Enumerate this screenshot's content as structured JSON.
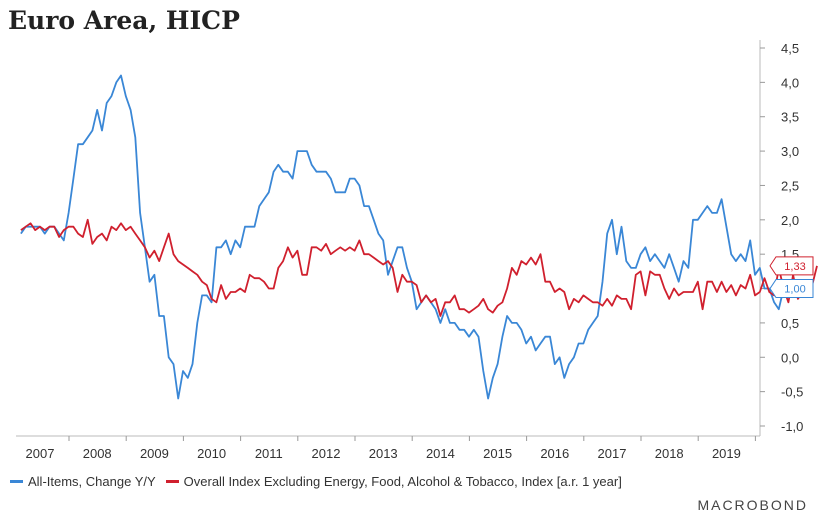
{
  "title": "Euro Area, HICP",
  "brand": "MACROBOND",
  "chart_data": {
    "type": "line",
    "title": "Euro Area, HICP",
    "xlabel": "",
    "ylabel": "",
    "ylim": [
      -1.0,
      4.5
    ],
    "yticks": [
      "4,5",
      "4,0",
      "3,5",
      "3,0",
      "2,5",
      "2,0",
      "1,5",
      "1,0",
      "0,5",
      "0,0",
      "-0,5",
      "-1,0"
    ],
    "ytick_values": [
      4.5,
      4.0,
      3.5,
      3.0,
      2.5,
      2.0,
      1.5,
      1.0,
      0.5,
      0.0,
      -0.5,
      -1.0
    ],
    "xticks": [
      "2007",
      "2008",
      "2009",
      "2010",
      "2011",
      "2012",
      "2013",
      "2014",
      "2015",
      "2016",
      "2017",
      "2018",
      "2019"
    ],
    "grid": false,
    "legend": "bottom",
    "series": [
      {
        "name": "All-Items, Change Y/Y",
        "color": "#3a87d6",
        "last_label": "1,00",
        "x_start": "2006-09",
        "values": [
          1.8,
          1.9,
          1.9,
          1.9,
          1.9,
          1.8,
          1.9,
          1.9,
          1.8,
          1.7,
          2.1,
          2.6,
          3.1,
          3.1,
          3.2,
          3.3,
          3.6,
          3.3,
          3.7,
          3.8,
          4.0,
          4.1,
          3.8,
          3.6,
          3.2,
          2.1,
          1.6,
          1.1,
          1.2,
          0.6,
          0.6,
          0.0,
          -0.1,
          -0.6,
          -0.2,
          -0.3,
          -0.1,
          0.5,
          0.9,
          0.9,
          0.8,
          1.6,
          1.6,
          1.7,
          1.5,
          1.7,
          1.6,
          1.9,
          1.9,
          1.9,
          2.2,
          2.3,
          2.4,
          2.7,
          2.8,
          2.7,
          2.7,
          2.6,
          3.0,
          3.0,
          3.0,
          2.8,
          2.7,
          2.7,
          2.7,
          2.6,
          2.4,
          2.4,
          2.4,
          2.6,
          2.6,
          2.5,
          2.2,
          2.2,
          2.0,
          1.8,
          1.7,
          1.2,
          1.4,
          1.6,
          1.6,
          1.3,
          1.1,
          0.7,
          0.8,
          0.9,
          0.8,
          0.7,
          0.5,
          0.7,
          0.5,
          0.5,
          0.4,
          0.4,
          0.3,
          0.4,
          0.3,
          -0.2,
          -0.6,
          -0.3,
          -0.1,
          0.3,
          0.6,
          0.5,
          0.5,
          0.4,
          0.2,
          0.3,
          0.1,
          0.2,
          0.3,
          0.3,
          -0.1,
          0.0,
          -0.3,
          -0.1,
          0.0,
          0.2,
          0.2,
          0.4,
          0.5,
          0.6,
          1.1,
          1.8,
          2.0,
          1.5,
          1.9,
          1.4,
          1.3,
          1.3,
          1.5,
          1.6,
          1.4,
          1.5,
          1.4,
          1.3,
          1.5,
          1.3,
          1.1,
          1.4,
          1.3,
          2.0,
          2.0,
          2.1,
          2.2,
          2.1,
          2.1,
          2.3,
          1.9,
          1.5,
          1.4,
          1.5,
          1.4,
          1.7,
          1.2,
          1.3,
          1.0,
          1.0,
          0.8,
          0.7,
          1.0
        ]
      },
      {
        "name": "Overall Index Excluding Energy, Food, Alcohol & Tobacco, Index [a.r. 1 year]",
        "color": "#d0202e",
        "last_label": "1,33",
        "x_start": "2006-09",
        "values": [
          1.85,
          1.9,
          1.95,
          1.85,
          1.9,
          1.85,
          1.9,
          1.9,
          1.75,
          1.85,
          1.9,
          1.9,
          1.8,
          1.75,
          2.0,
          1.65,
          1.75,
          1.8,
          1.7,
          1.9,
          1.85,
          1.95,
          1.85,
          1.9,
          1.8,
          1.7,
          1.6,
          1.45,
          1.55,
          1.4,
          1.6,
          1.8,
          1.5,
          1.4,
          1.35,
          1.3,
          1.25,
          1.2,
          1.1,
          1.05,
          0.85,
          0.8,
          1.05,
          0.85,
          0.95,
          0.95,
          1.0,
          0.95,
          1.2,
          1.15,
          1.15,
          1.1,
          1.0,
          1.0,
          1.3,
          1.4,
          1.6,
          1.45,
          1.55,
          1.2,
          1.2,
          1.6,
          1.6,
          1.55,
          1.65,
          1.5,
          1.55,
          1.6,
          1.55,
          1.6,
          1.55,
          1.7,
          1.5,
          1.5,
          1.45,
          1.4,
          1.35,
          1.4,
          1.3,
          0.95,
          1.2,
          1.1,
          1.1,
          1.05,
          0.8,
          0.9,
          0.8,
          0.85,
          0.6,
          0.8,
          0.8,
          0.9,
          0.7,
          0.7,
          0.65,
          0.7,
          0.75,
          0.85,
          0.7,
          0.65,
          0.75,
          0.8,
          1.0,
          1.3,
          1.2,
          1.4,
          1.35,
          1.45,
          1.35,
          1.5,
          1.1,
          1.1,
          0.95,
          1.0,
          0.95,
          0.7,
          0.85,
          0.8,
          0.9,
          0.85,
          0.8,
          0.8,
          0.75,
          0.85,
          0.75,
          0.9,
          0.85,
          0.85,
          0.7,
          1.2,
          1.25,
          0.9,
          1.25,
          1.2,
          1.2,
          1.0,
          0.85,
          1.0,
          0.9,
          0.95,
          0.95,
          0.95,
          1.1,
          0.7,
          1.1,
          1.1,
          0.95,
          1.1,
          0.95,
          1.05,
          0.9,
          1.05,
          1.0,
          1.2,
          0.9,
          0.95,
          1.15,
          0.95,
          0.9,
          1.3,
          1.0,
          0.8,
          1.2,
          0.85,
          0.95,
          1.05,
          1.05,
          1.33
        ]
      }
    ]
  }
}
